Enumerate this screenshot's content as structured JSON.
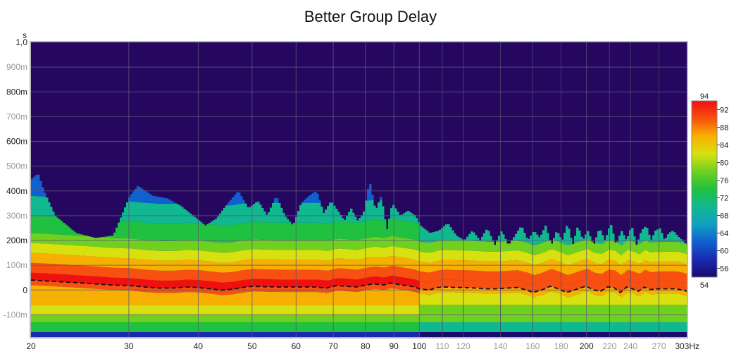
{
  "chart_data": {
    "type": "heatmap",
    "title": "Better Group Delay",
    "xlabel": "Hz",
    "ylabel": "s",
    "xscale": "log",
    "xlim": [
      20,
      303
    ],
    "ylim": [
      -0.19,
      1.0
    ],
    "x_ticks": [
      {
        "value": 20,
        "label": "20",
        "major": true
      },
      {
        "value": 30,
        "label": "30",
        "major": true
      },
      {
        "value": 40,
        "label": "40",
        "major": true
      },
      {
        "value": 50,
        "label": "50",
        "major": true
      },
      {
        "value": 60,
        "label": "60",
        "major": true
      },
      {
        "value": 70,
        "label": "70",
        "major": true
      },
      {
        "value": 80,
        "label": "80",
        "major": true
      },
      {
        "value": 90,
        "label": "90",
        "major": true
      },
      {
        "value": 100,
        "label": "100",
        "major": true
      },
      {
        "value": 110,
        "label": "110",
        "major": false
      },
      {
        "value": 120,
        "label": "120",
        "major": false
      },
      {
        "value": 140,
        "label": "140",
        "major": false
      },
      {
        "value": 160,
        "label": "160",
        "major": false
      },
      {
        "value": 180,
        "label": "180",
        "major": false
      },
      {
        "value": 200,
        "label": "200",
        "major": true
      },
      {
        "value": 220,
        "label": "220",
        "major": false
      },
      {
        "value": 240,
        "label": "240",
        "major": false
      },
      {
        "value": 270,
        "label": "270",
        "major": false
      },
      {
        "value": 303,
        "label": "303Hz",
        "major": true
      }
    ],
    "y_ticks": [
      {
        "value": 1.0,
        "label": "1,0",
        "major": true
      },
      {
        "value": 0.9,
        "label": "900m",
        "major": false
      },
      {
        "value": 0.8,
        "label": "800m",
        "major": true
      },
      {
        "value": 0.7,
        "label": "700m",
        "major": false
      },
      {
        "value": 0.6,
        "label": "600m",
        "major": true
      },
      {
        "value": 0.5,
        "label": "500m",
        "major": false
      },
      {
        "value": 0.4,
        "label": "400m",
        "major": true
      },
      {
        "value": 0.3,
        "label": "300m",
        "major": false
      },
      {
        "value": 0.2,
        "label": "200m",
        "major": true
      },
      {
        "value": 0.1,
        "label": "100m",
        "major": false
      },
      {
        "value": 0.0,
        "label": "0",
        "major": true
      },
      {
        "value": -0.1,
        "label": "-100m",
        "major": false
      }
    ],
    "colorbar": {
      "min": 54,
      "max": 94,
      "min_label": "54",
      "max_label": "94",
      "ticks": [
        56,
        60,
        64,
        68,
        72,
        76,
        80,
        84,
        88,
        92
      ],
      "colors": [
        "#1a0a6e",
        "#1a2ab0",
        "#1060d0",
        "#10a0c0",
        "#10b890",
        "#20c040",
        "#70d020",
        "#d8e010",
        "#f8b000",
        "#f85010",
        "#f01010"
      ]
    },
    "background_color": "#26075f",
    "peak_curve": {
      "name": "group delay",
      "style": "dashed",
      "color": "#111111",
      "x": [
        20,
        22,
        24,
        26,
        28,
        30,
        32,
        34,
        36,
        38,
        40,
        42,
        44,
        46,
        48,
        50,
        53,
        56,
        59,
        62,
        65,
        68,
        71,
        74,
        77,
        80,
        83,
        86,
        89,
        92,
        95,
        98,
        100,
        104,
        108,
        112,
        116,
        120,
        126,
        132,
        138,
        144,
        150,
        156,
        160,
        166,
        172,
        178,
        184,
        190,
        196,
        200,
        206,
        212,
        218,
        224,
        230,
        236,
        242,
        248,
        254,
        260,
        270,
        280,
        290,
        303
      ],
      "y": [
        0.04,
        0.035,
        0.03,
        0.025,
        0.02,
        0.018,
        0.012,
        0.008,
        0.008,
        0.012,
        0.01,
        0.005,
        0.0,
        0.003,
        0.01,
        0.015,
        0.013,
        0.012,
        0.012,
        0.012,
        0.012,
        0.008,
        0.018,
        0.015,
        0.012,
        0.02,
        0.025,
        0.02,
        0.028,
        0.022,
        0.018,
        0.012,
        0.005,
        0.0,
        0.01,
        0.012,
        0.01,
        0.01,
        0.008,
        0.005,
        0.005,
        0.008,
        0.01,
        0.0,
        -0.01,
        0.0,
        0.015,
        0.005,
        -0.01,
        0.0,
        0.01,
        0.015,
        0.0,
        -0.005,
        0.012,
        0.01,
        -0.01,
        0.012,
        0.005,
        -0.005,
        0.012,
        0.002,
        0.005,
        0.005,
        0.005,
        -0.005
      ]
    },
    "ridge_top": {
      "x": [
        20,
        20.5,
        21,
        22,
        24,
        26,
        28,
        30,
        31,
        33,
        35,
        37,
        39,
        41,
        43,
        45,
        47,
        49,
        51,
        53,
        55,
        57,
        59,
        61,
        63,
        65,
        67,
        69,
        71,
        73,
        75,
        77,
        79,
        81,
        83,
        85,
        87,
        89,
        92,
        95,
        98,
        100,
        104,
        108,
        112,
        116,
        120,
        124,
        128,
        132,
        136,
        140,
        144,
        148,
        152,
        156,
        160,
        164,
        168,
        172,
        176,
        180,
        184,
        188,
        192,
        196,
        200,
        205,
        210,
        215,
        220,
        225,
        230,
        235,
        240,
        245,
        250,
        255,
        260,
        265,
        270,
        275,
        280,
        285,
        290,
        296,
        303
      ],
      "y": [
        0.45,
        0.47,
        0.4,
        0.3,
        0.23,
        0.21,
        0.22,
        0.38,
        0.42,
        0.38,
        0.37,
        0.34,
        0.3,
        0.26,
        0.29,
        0.35,
        0.4,
        0.33,
        0.36,
        0.3,
        0.38,
        0.3,
        0.26,
        0.35,
        0.38,
        0.4,
        0.31,
        0.36,
        0.32,
        0.28,
        0.33,
        0.28,
        0.31,
        0.44,
        0.32,
        0.38,
        0.24,
        0.35,
        0.3,
        0.32,
        0.3,
        0.26,
        0.23,
        0.24,
        0.27,
        0.22,
        0.2,
        0.24,
        0.2,
        0.25,
        0.18,
        0.24,
        0.18,
        0.22,
        0.26,
        0.2,
        0.24,
        0.21,
        0.26,
        0.18,
        0.24,
        0.2,
        0.27,
        0.18,
        0.26,
        0.2,
        0.24,
        0.18,
        0.25,
        0.2,
        0.27,
        0.18,
        0.24,
        0.2,
        0.26,
        0.18,
        0.24,
        0.26,
        0.2,
        0.24,
        0.25,
        0.2,
        0.23,
        0.24,
        0.22,
        0.2,
        0.18
      ]
    }
  }
}
